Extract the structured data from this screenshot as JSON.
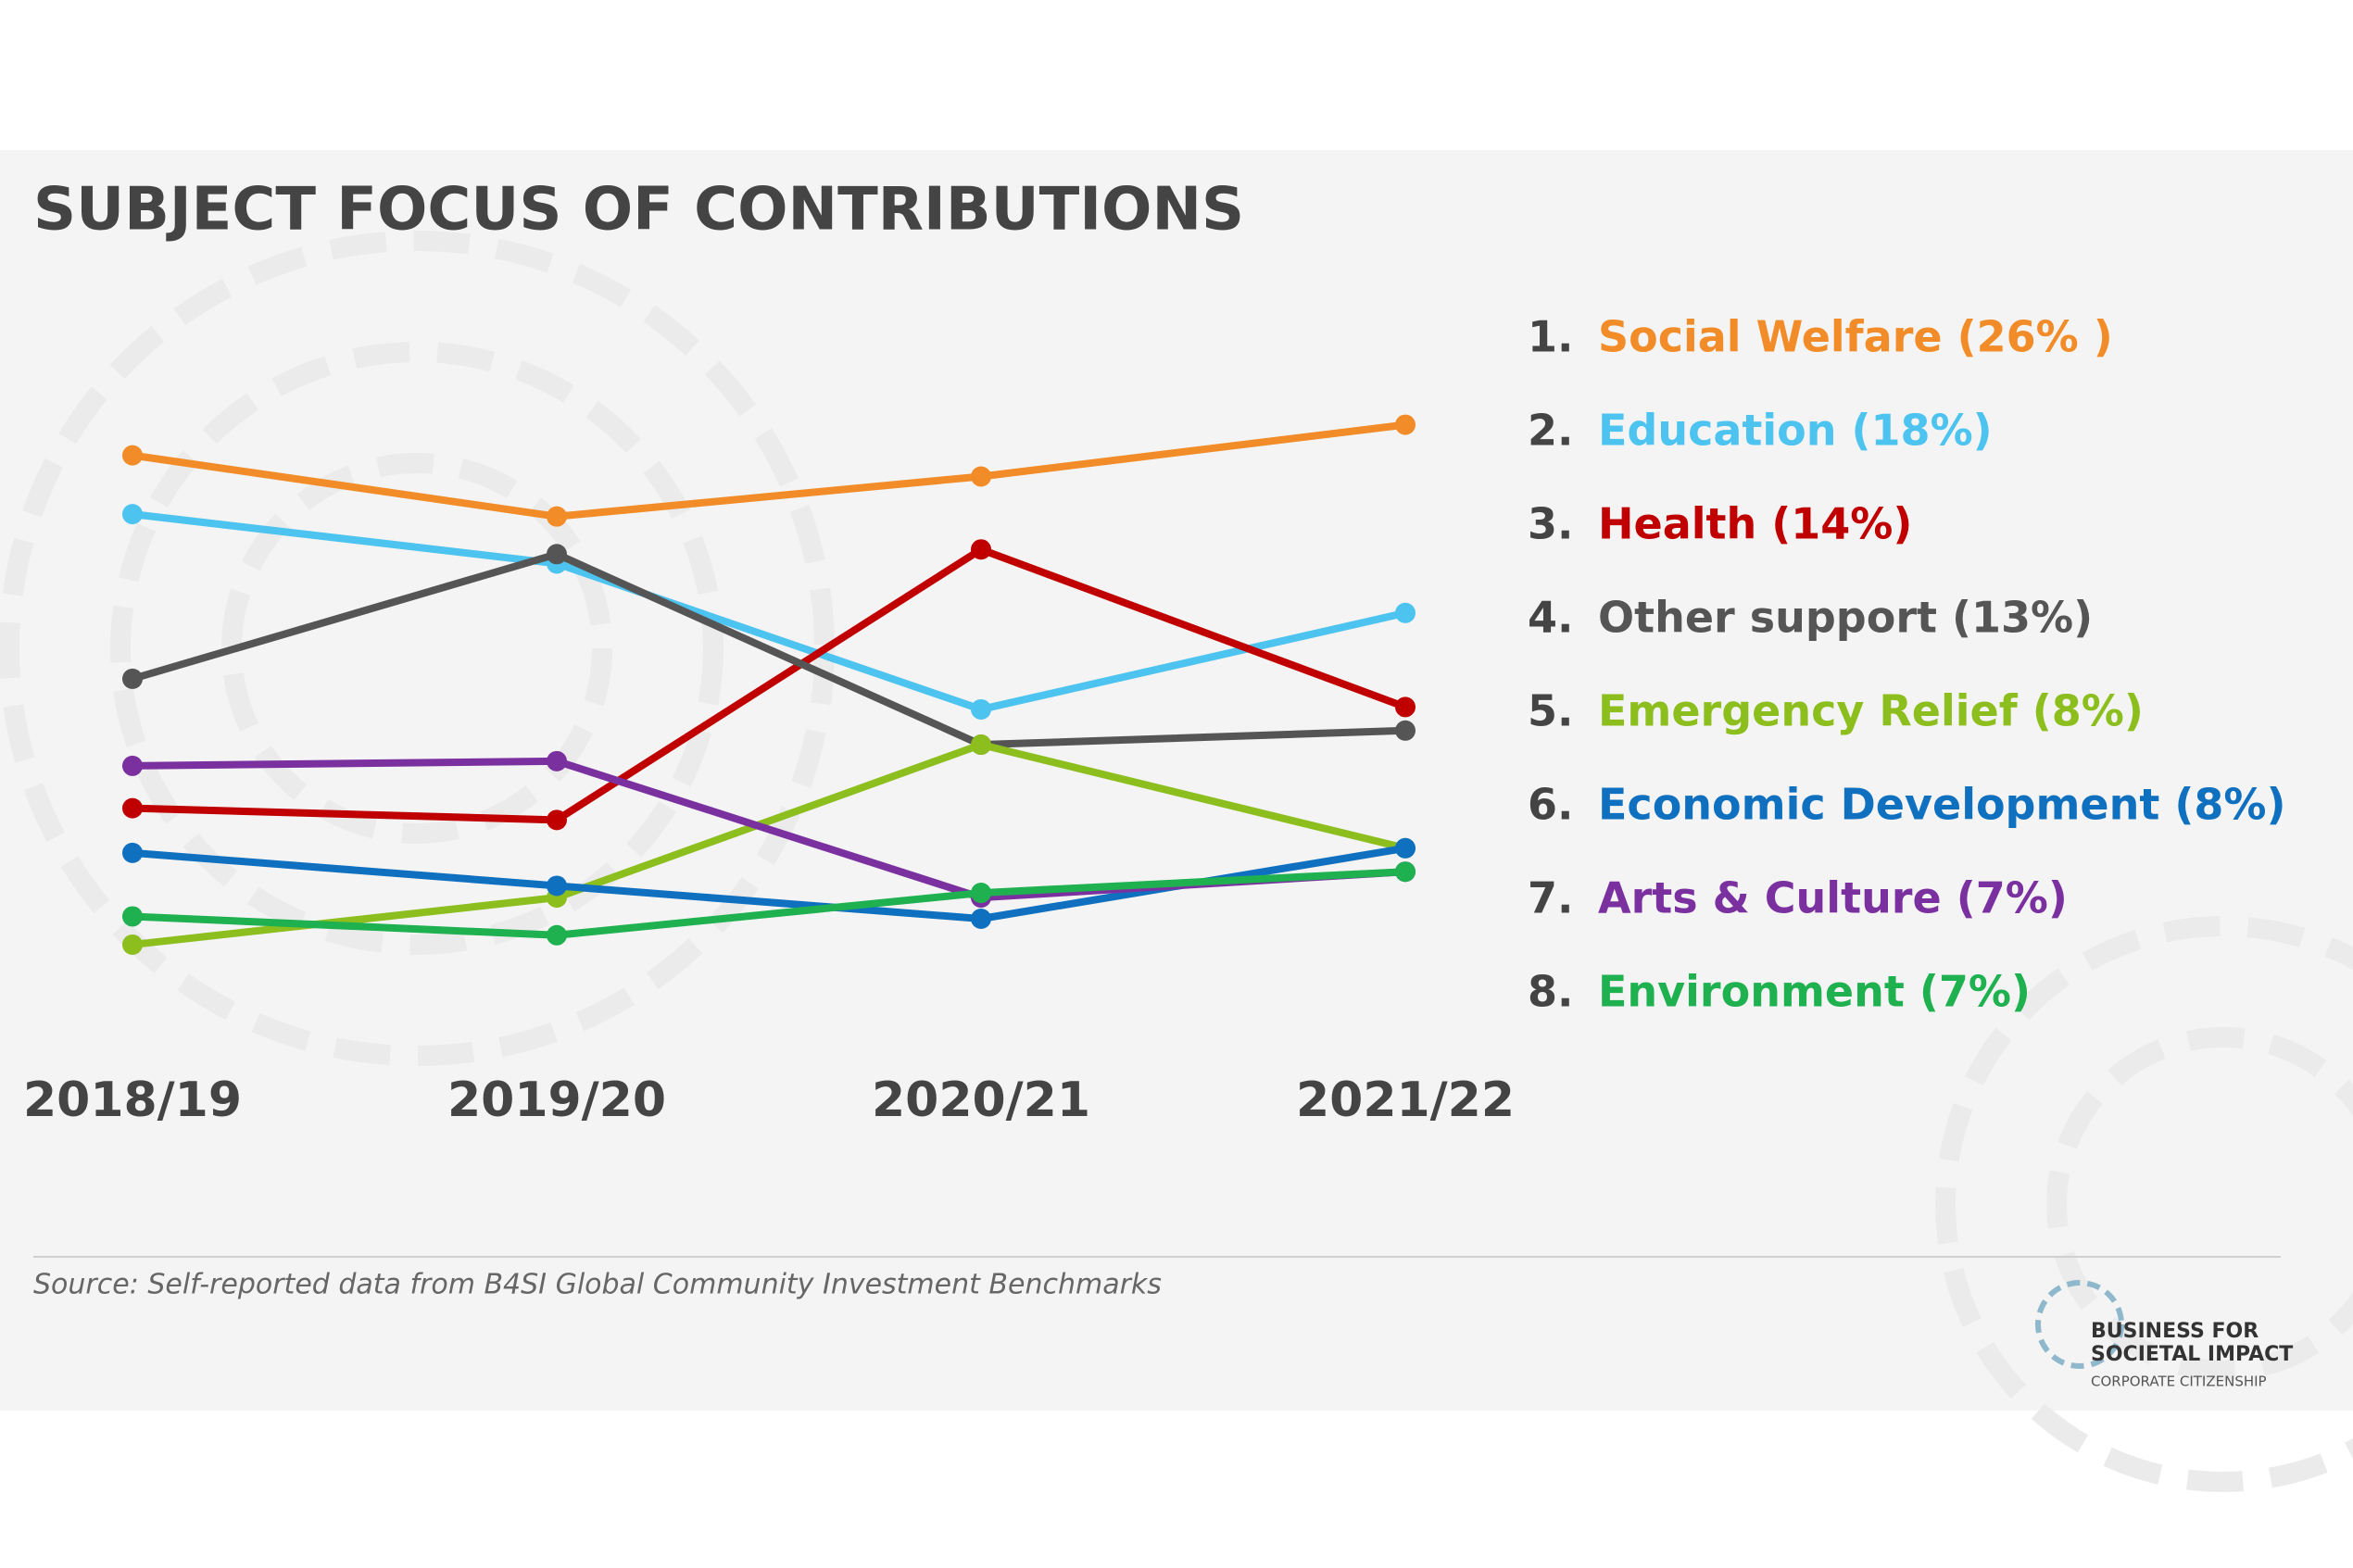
{
  "chart_data": {
    "type": "line",
    "title": "SUBJECT FOCUS OF CONTRIBUTIONS",
    "categories": [
      "2018/19",
      "2019/20",
      "2020/21",
      "2021/22"
    ],
    "series": [
      {
        "rank": "1.",
        "name": "Social Welfare (26% )",
        "color": "#f28c28",
        "values": [
          24.7,
          22.1,
          23.8,
          26
        ]
      },
      {
        "rank": "2.",
        "name": "Education (18%)",
        "color": "#4dc3f0",
        "values": [
          22.2,
          20.1,
          13.9,
          18
        ]
      },
      {
        "rank": "3.",
        "name": "Health (14%)",
        "color": "#c00000",
        "values": [
          9.7,
          9.2,
          20.7,
          14
        ]
      },
      {
        "rank": "4.",
        "name": "Other support (13%)",
        "color": "#555555",
        "values": [
          15.2,
          20.5,
          12.4,
          13
        ]
      },
      {
        "rank": "5.",
        "name": "Emergency Relief (8%)",
        "color": "#8cbe1e",
        "values": [
          3.9,
          5.9,
          12.4,
          8
        ]
      },
      {
        "rank": "6.",
        "name": "Economic Development (8%)",
        "color": "#1070c0",
        "values": [
          7.8,
          6.4,
          5.0,
          8
        ]
      },
      {
        "rank": "7.",
        "name": "Arts & Culture (7%)",
        "color": "#7b30a0",
        "values": [
          11.5,
          11.7,
          5.9,
          7
        ]
      },
      {
        "rank": "8.",
        "name": "Environment (7%)",
        "color": "#1fb050",
        "values": [
          5.1,
          4.3,
          6.1,
          7
        ]
      }
    ],
    "source": "Source: Self-reported data from B4SI Global Community Investment Benchmarks"
  },
  "logo": {
    "lines": [
      "BUSINESS FOR",
      "SOCIETAL IMPACT",
      "CORPORATE CITIZENSHIP"
    ]
  }
}
